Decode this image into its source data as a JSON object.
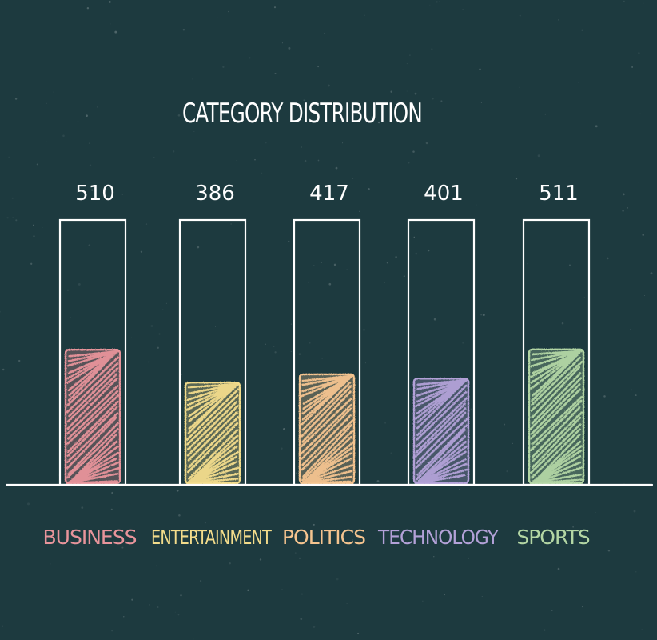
{
  "chart_data": {
    "type": "bar",
    "title": "CATEGORY DISTRIBUTION",
    "categories": [
      "BUSINESS",
      "ENTERTAINMENT",
      "POLITICS",
      "TECHNOLOGY",
      "SPORTS"
    ],
    "values": [
      510,
      386,
      417,
      401,
      511
    ],
    "value_labels": [
      "510",
      "386",
      "417",
      "401",
      "511"
    ],
    "ylim": [
      0,
      1000
    ],
    "xlabel": "",
    "ylabel": "",
    "grid": false,
    "legend": "none",
    "colors": [
      "#e8949b",
      "#f3dc8b",
      "#f5c48f",
      "#b3a1d8",
      "#b3d6a4"
    ]
  },
  "style": {
    "background": "#1d3a3f",
    "chalk": "#ffffff"
  }
}
